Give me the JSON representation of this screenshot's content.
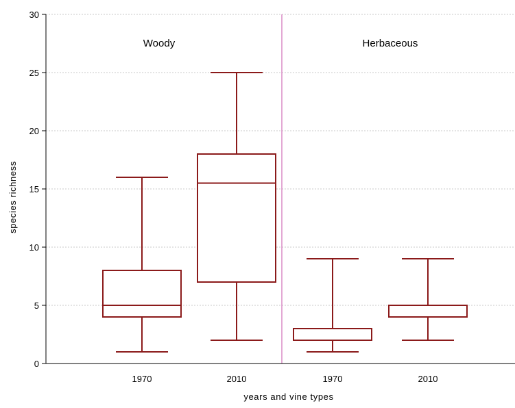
{
  "chart_data": {
    "type": "box",
    "title": "",
    "xlabel": "years and vine types",
    "ylabel": "species richness",
    "ylim": [
      0,
      30
    ],
    "yticks": [
      0,
      5,
      10,
      15,
      20,
      25,
      30
    ],
    "grid": "horizontal dashed",
    "groups": [
      {
        "label": "Woody",
        "boxes": [
          {
            "category": "1970",
            "min": 1,
            "q1": 4,
            "median": 5,
            "q3": 8,
            "max": 16
          },
          {
            "category": "2010",
            "min": 2,
            "q1": 7,
            "median": 15.5,
            "q3": 18,
            "max": 25
          }
        ]
      },
      {
        "label": "Herbaceous",
        "boxes": [
          {
            "category": "1970",
            "min": 1,
            "q1": 2,
            "median": 2,
            "q3": 3,
            "max": 9
          },
          {
            "category": "2010",
            "min": 2,
            "q1": 4,
            "median": 5,
            "q3": 5,
            "max": 9
          }
        ]
      }
    ],
    "colors": {
      "box": "#8b1a1a",
      "divider": "#d070b8",
      "axis": "#000000"
    }
  }
}
